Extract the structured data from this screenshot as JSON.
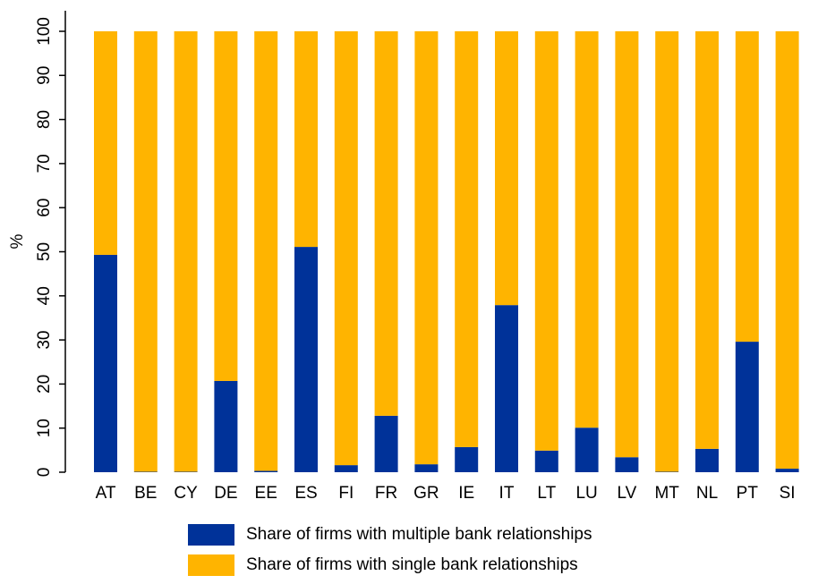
{
  "chart_data": {
    "type": "stacked_bar",
    "y_label": "%",
    "categories": [
      "AT",
      "BE",
      "CY",
      "DE",
      "EE",
      "ES",
      "FI",
      "FR",
      "GR",
      "IE",
      "IT",
      "LT",
      "LU",
      "LV",
      "MT",
      "NL",
      "PT",
      "SI"
    ],
    "series": [
      {
        "name": "Share of firms with multiple bank relationships",
        "color": "#003299",
        "values": [
          49.3,
          0.1,
          0.1,
          20.7,
          0.3,
          51.1,
          1.6,
          12.8,
          1.8,
          5.7,
          37.9,
          4.9,
          10.1,
          3.4,
          0.1,
          5.3,
          29.6,
          0.8
        ]
      },
      {
        "name": "Share of firms with single bank relationships",
        "color": "#ffb400",
        "values": [
          50.7,
          99.9,
          99.9,
          79.3,
          99.7,
          48.9,
          98.4,
          87.2,
          98.2,
          94.3,
          62.1,
          95.1,
          89.9,
          96.6,
          99.9,
          94.7,
          70.4,
          99.2
        ]
      }
    ],
    "ylim": [
      0,
      100
    ],
    "yticks": [
      0,
      10,
      20,
      30,
      40,
      50,
      60,
      70,
      80,
      90,
      100
    ],
    "grid": false
  }
}
